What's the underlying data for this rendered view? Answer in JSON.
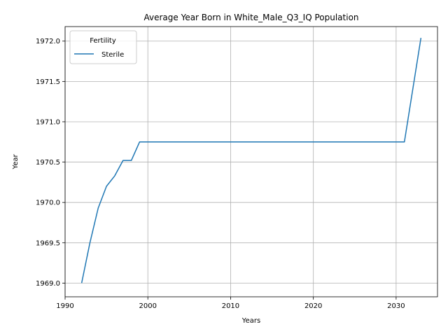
{
  "chart_data": {
    "type": "line",
    "title": "Average Year Born in White_Male_Q3_IQ Population",
    "xlabel": "Years",
    "ylabel": "Year",
    "xlim": [
      1990,
      2035
    ],
    "ylim": [
      1968.83,
      1972.18
    ],
    "x_ticks": [
      1990,
      2000,
      2010,
      2020,
      2030
    ],
    "x_tick_labels": [
      "1990",
      "2000",
      "2010",
      "2020",
      "2030"
    ],
    "y_ticks": [
      1969.0,
      1969.5,
      1970.0,
      1970.5,
      1971.0,
      1971.5,
      1972.0
    ],
    "y_tick_labels": [
      "1969.0",
      "1969.5",
      "1970.0",
      "1970.5",
      "1971.0",
      "1971.5",
      "1972.0"
    ],
    "grid": true,
    "legend": {
      "title": "Fertility",
      "placement": "upper-left"
    },
    "series": [
      {
        "name": "Sterile",
        "color": "#1f77b4",
        "x": [
          1992,
          1993,
          1994,
          1995,
          1996,
          1997,
          1998,
          1999,
          2000,
          2005,
          2010,
          2015,
          2020,
          2025,
          2030,
          2031,
          2033
        ],
        "y": [
          1969.0,
          1969.5,
          1969.93,
          1970.2,
          1970.33,
          1970.52,
          1970.52,
          1970.75,
          1970.75,
          1970.75,
          1970.75,
          1970.75,
          1970.75,
          1970.75,
          1970.75,
          1970.75,
          1972.04
        ]
      }
    ]
  }
}
